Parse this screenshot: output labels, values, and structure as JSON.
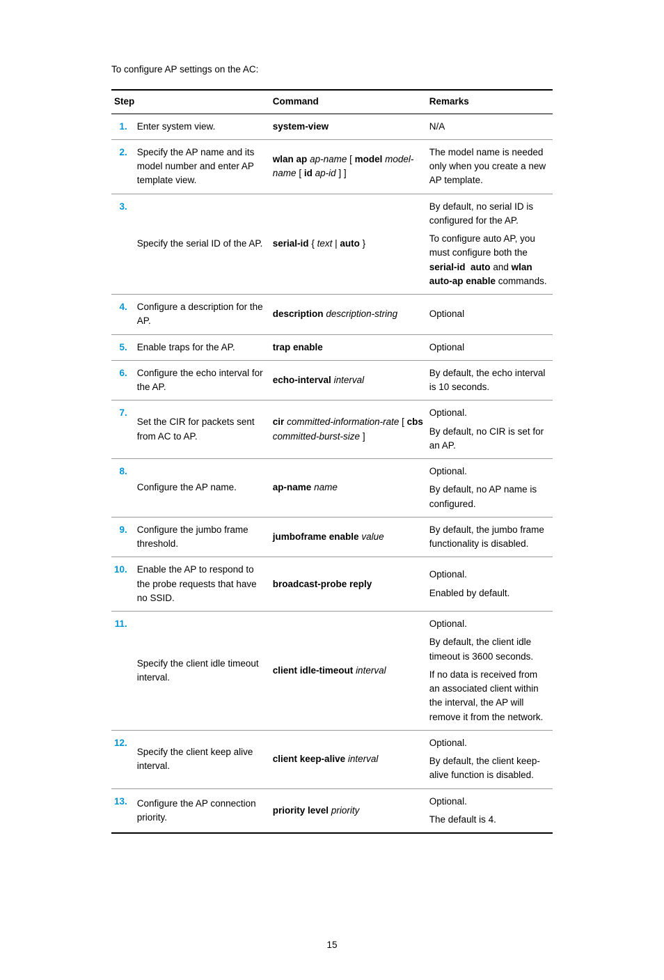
{
  "intro": "To configure AP settings on the AC:",
  "headers": {
    "step": "Step",
    "command": "Command",
    "remarks": "Remarks"
  },
  "rows": [
    {
      "num": "1.",
      "desc": "Enter system view.",
      "cmd_html": "<span class='b'>system-view</span>",
      "rem_html": "N/A"
    },
    {
      "num": "2.",
      "desc": "Specify the AP name and its model number and enter AP template view.",
      "cmd_html": "<span class='b'>wlan ap</span> <span class='i'>ap-name</span> [ <span class='b'>model</span> <span class='i'>model-name</span> [ <span class='b'>id</span> <span class='i'>ap-id</span> ] ]",
      "rem_html": "The model name is needed only when you create a new AP template."
    },
    {
      "num": "3.",
      "desc": "Specify the serial ID of the AP.",
      "cmd_html": "<span class='b'>serial-id</span> { <span class='i'>text</span> | <span class='b'>auto</span> }",
      "rem_html": "<div class='remark-block'><p>By default, no serial ID is configured for the AP.</p><p>To configure auto AP, you must configure both the <span class='b'>serial-id &nbsp;auto</span> and <span class='b'>wlan auto-ap enable</span> commands.</p></div>"
    },
    {
      "num": "4.",
      "desc": "Configure a description for the AP.",
      "cmd_html": "<span class='b'>description</span> <span class='i'>description-string</span>",
      "rem_html": "Optional"
    },
    {
      "num": "5.",
      "desc": "Enable traps for the AP.",
      "cmd_html": "<span class='b'>trap enable</span>",
      "rem_html": "Optional"
    },
    {
      "num": "6.",
      "desc": "Configure the echo interval for the AP.",
      "cmd_html": "<span class='b'>echo-interval</span> <span class='i'>interval</span>",
      "rem_html": "By default, the echo interval is 10 seconds."
    },
    {
      "num": "7.",
      "desc": "Set the CIR for packets sent from AC to AP.",
      "cmd_html": "<span class='b'>cir</span> <span class='i'>committed-information-rate</span> [ <span class='b'>cbs</span> <span class='i'>committed-burst-size</span> ]",
      "rem_html": "<div class='remark-block'><p>Optional.</p><p>By default, no CIR is set for an AP.</p></div>"
    },
    {
      "num": "8.",
      "desc": "Configure the AP name.",
      "cmd_html": "<span class='b'>ap-name</span> <span class='i'>name</span>",
      "rem_html": "<div class='remark-block'><p>Optional.</p><p>By default, no AP name is configured.</p></div>"
    },
    {
      "num": "9.",
      "desc": "Configure the jumbo frame threshold.",
      "cmd_html": "<span class='b'>jumboframe enable</span> <span class='i'>value</span>",
      "rem_html": "By default, the jumbo frame functionality is disabled."
    },
    {
      "num": "10.",
      "desc": "Enable the AP to respond to the probe requests that have no SSID.",
      "cmd_html": "<span class='b'>broadcast-probe reply</span>",
      "rem_html": "<div class='remark-block'><p>Optional.</p><p>Enabled by default.</p></div>"
    },
    {
      "num": "11.",
      "desc": "Specify the client idle timeout interval.",
      "cmd_html": "<span class='b'>client idle-timeout</span> <span class='i'>interval</span>",
      "rem_html": "<div class='remark-block'><p>Optional.</p><p>By default, the client idle timeout is 3600 seconds.</p><p>If no data is received from an associated client within the interval, the AP will remove it from the network.</p></div>"
    },
    {
      "num": "12.",
      "desc": "Specify the client keep alive interval.",
      "cmd_html": "<span class='b'>client keep-alive</span> <span class='i'>interval</span>",
      "rem_html": "<div class='remark-block'><p>Optional.</p><p>By default, the client keep-alive function is disabled.</p></div>"
    },
    {
      "num": "13.",
      "desc": "Configure the AP connection priority.",
      "cmd_html": "<span class='b'>priority level</span> <span class='i'>priority</span>",
      "rem_html": "<div class='remark-block'><p>Optional.</p><p>The default is 4.</p></div>"
    }
  ],
  "page_number": "15"
}
